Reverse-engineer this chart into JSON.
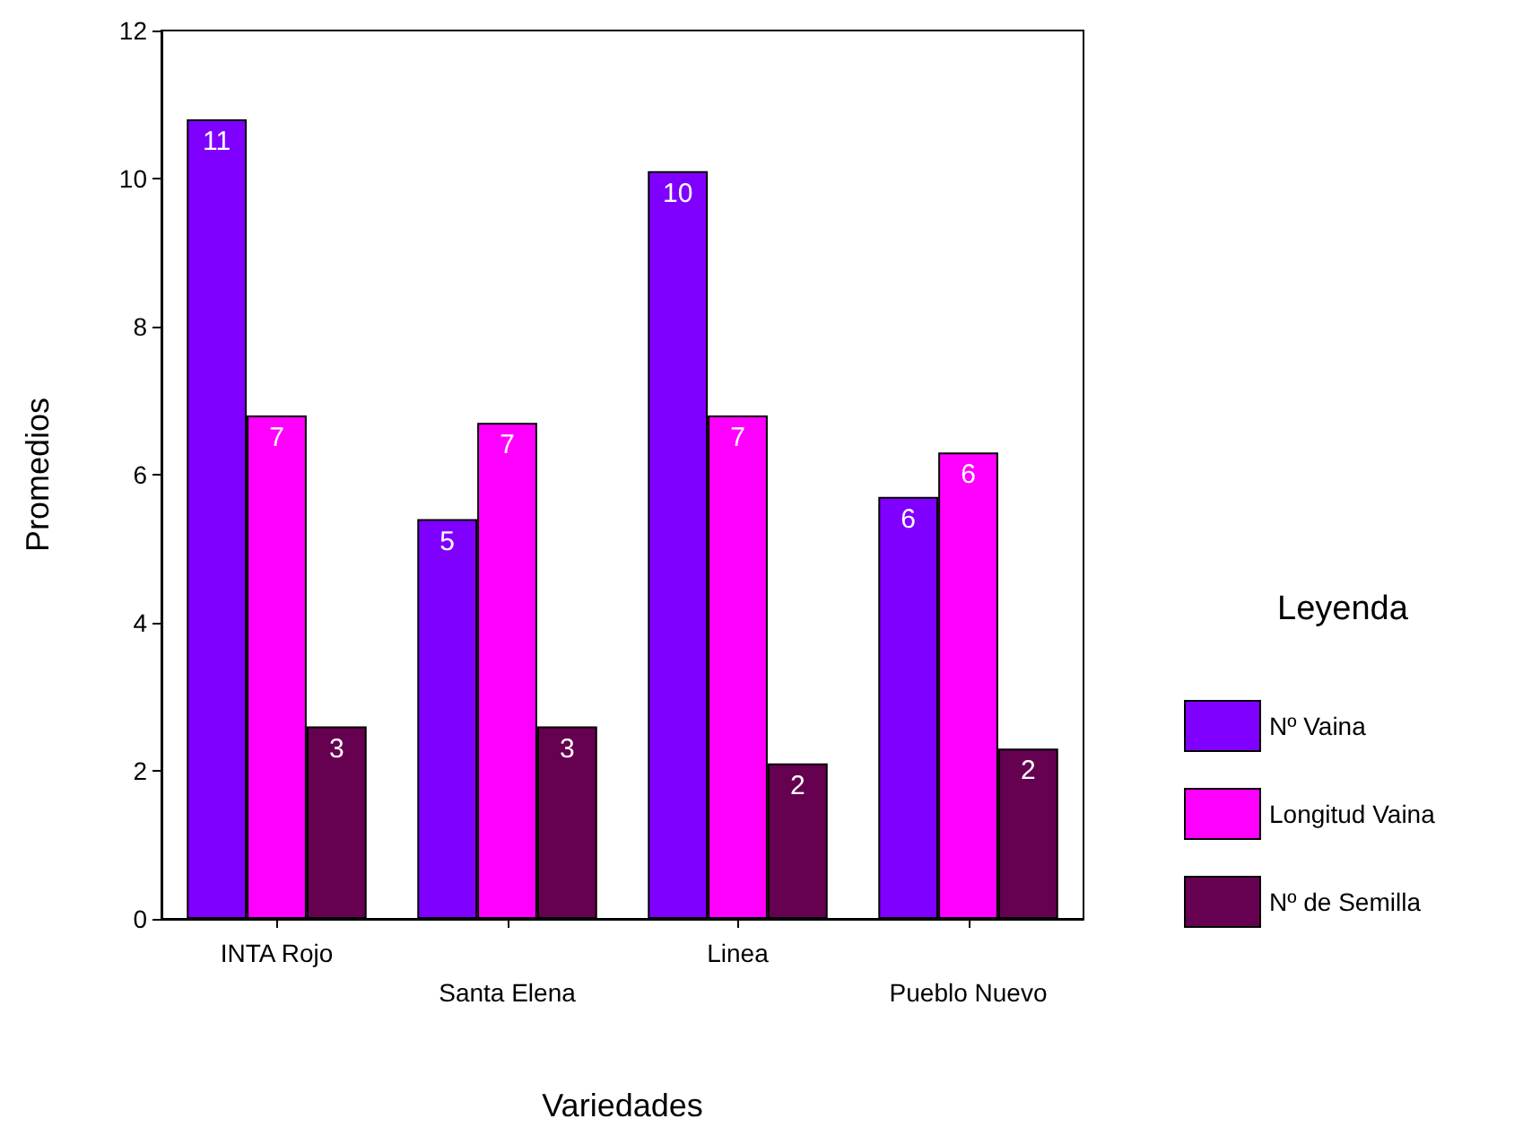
{
  "chart_data": {
    "type": "bar",
    "xlabel": "Variedades",
    "ylabel": "Promedios",
    "legend_title": "Leyenda",
    "categories": [
      "INTA Rojo",
      "Santa Elena",
      "Linea",
      "Pueblo Nuevo"
    ],
    "series": [
      {
        "name": "Nº Vaina",
        "color": "#8000ff",
        "values": [
          10.8,
          5.4,
          10.1,
          5.7
        ],
        "value_labels": [
          "11",
          "5",
          "10",
          "6"
        ]
      },
      {
        "name": "Longitud Vaina",
        "color": "#ff00ff",
        "values": [
          6.8,
          6.7,
          6.8,
          6.3
        ],
        "value_labels": [
          "7",
          "7",
          "7",
          "6"
        ]
      },
      {
        "name": "Nº de Semilla",
        "color": "#660050",
        "values": [
          2.6,
          2.6,
          2.1,
          2.3
        ],
        "value_labels": [
          "3",
          "3",
          "2",
          "2"
        ]
      }
    ],
    "ylim": [
      0,
      12
    ],
    "yticks": [
      0,
      2,
      4,
      6,
      8,
      10,
      12
    ],
    "grid": false,
    "legend": "right"
  }
}
